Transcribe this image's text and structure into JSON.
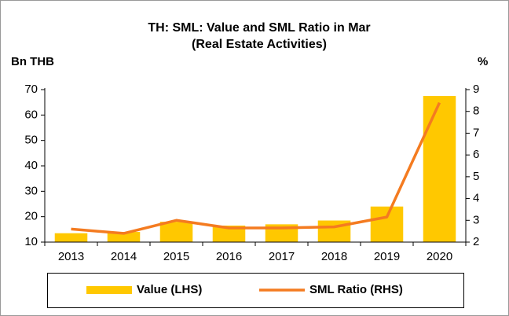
{
  "chart_data": {
    "type": "bar",
    "title": "TH: SML: Value and SML Ratio in Mar",
    "subtitle": "(Real Estate Activities)",
    "y_label": "Bn THB",
    "y2_label": "%",
    "categories": [
      "2013",
      "2014",
      "2015",
      "2016",
      "2017",
      "2018",
      "2019",
      "2020"
    ],
    "series": [
      {
        "name": "Value (LHS)",
        "type": "bar",
        "color": "#ffc800",
        "values": [
          13.5,
          14,
          18,
          16.5,
          17,
          18.5,
          24,
          67.5
        ]
      },
      {
        "name": "SML Ratio (RHS)",
        "type": "line",
        "axis": "y2",
        "color": "#f47b20",
        "values": [
          2.6,
          2.4,
          3.0,
          2.65,
          2.65,
          2.7,
          3.15,
          8.4
        ]
      }
    ],
    "ylim": [
      10,
      70
    ],
    "yticks": [
      10,
      20,
      30,
      40,
      50,
      60,
      70
    ],
    "y2lim": [
      2,
      9
    ],
    "y2ticks": [
      2,
      3,
      4,
      5,
      6,
      7,
      8,
      9
    ],
    "grid": false,
    "legend": "bottom"
  }
}
